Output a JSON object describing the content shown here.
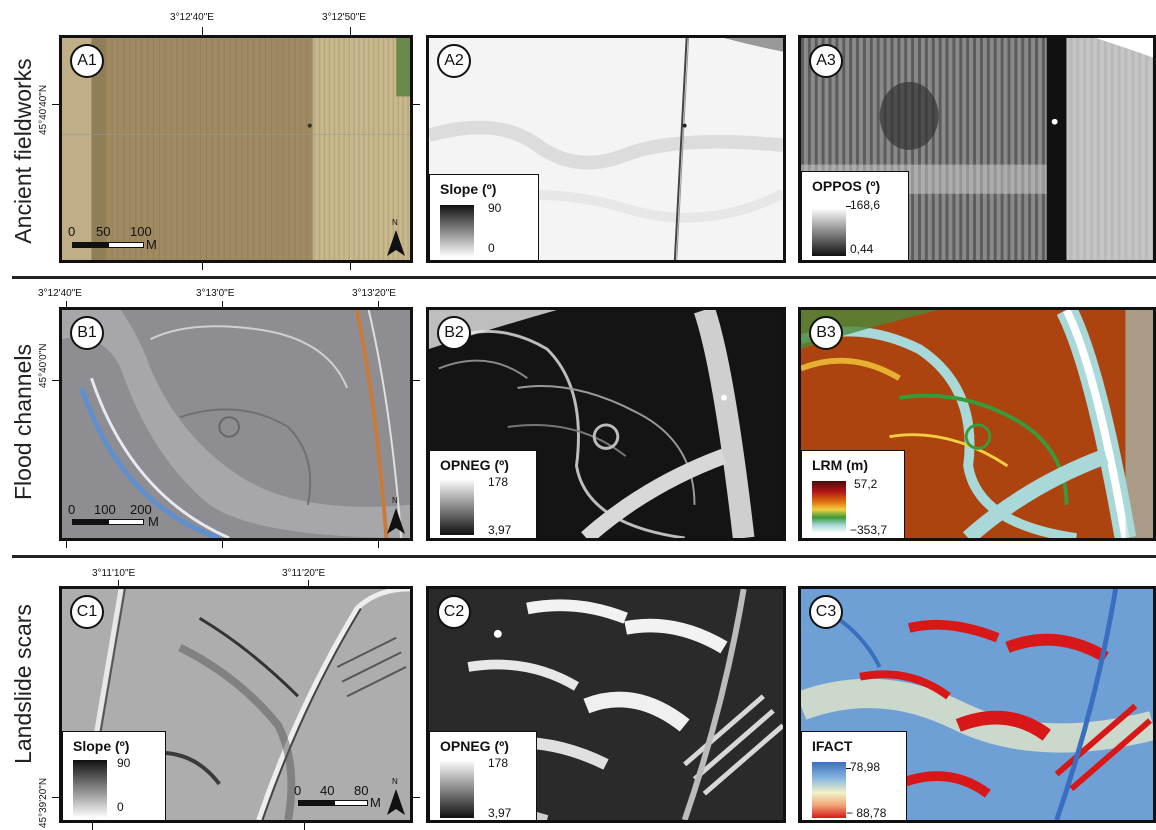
{
  "rows": {
    "a": "Ancient fieldworks",
    "b": "Flood channels",
    "c": "Landslide scars"
  },
  "panels": {
    "a1": "A1",
    "a2": "A2",
    "a3": "A3",
    "b1": "B1",
    "b2": "B2",
    "b3": "B3",
    "c1": "C1",
    "c2": "C2",
    "c3": "C3"
  },
  "coords": {
    "a_top_1": "3°12'40\"E",
    "a_top_2": "3°12'50\"E",
    "a_left": "45°40'40\"N",
    "b_top_1": "3°12'40\"E",
    "b_top_2": "3°13'0\"E",
    "b_top_3": "3°13'20\"E",
    "b_left": "45°40'0\"N",
    "c_top_1": "3°11'10\"E",
    "c_top_2": "3°11'20\"E",
    "c_left": "45°39'20\"N"
  },
  "scalebars": {
    "a": {
      "t0": "0",
      "t1": "50",
      "t2": "100",
      "unit": "M"
    },
    "b": {
      "t0": "0",
      "t1": "100",
      "t2": "200",
      "unit": "M"
    },
    "c": {
      "t0": "0",
      "t1": "40",
      "t2": "80",
      "unit": "M"
    }
  },
  "north": "N",
  "legends": {
    "a2": {
      "title": "Slope (º)",
      "max": "90",
      "min": "0"
    },
    "a3": {
      "title": "OPPOS (º)",
      "max": "168,6",
      "min": "0,44"
    },
    "b2": {
      "title": "OPNEG (º)",
      "max": "178",
      "min": "3,97"
    },
    "b3": {
      "title": "LRM (m)",
      "max": "57,2",
      "min": "−353,7"
    },
    "c1": {
      "title": "Slope (º)",
      "max": "90",
      "min": "0"
    },
    "c2": {
      "title": "OPNEG (º)",
      "max": "178",
      "min": "3,97"
    },
    "c3": {
      "title": "IFACT",
      "max": "78,98",
      "min": "− 88,78"
    }
  },
  "colors": {
    "frame": "#111111",
    "lrm_ramp": [
      "#4a0d0d",
      "#b01515",
      "#e07010",
      "#f0d040",
      "#3a9a3a",
      "#a8d8d8",
      "#ffffff"
    ],
    "ifact_ramp": [
      "#3a6fc0",
      "#8ab8e0",
      "#f2f2c8",
      "#f0a070",
      "#d81818"
    ]
  }
}
